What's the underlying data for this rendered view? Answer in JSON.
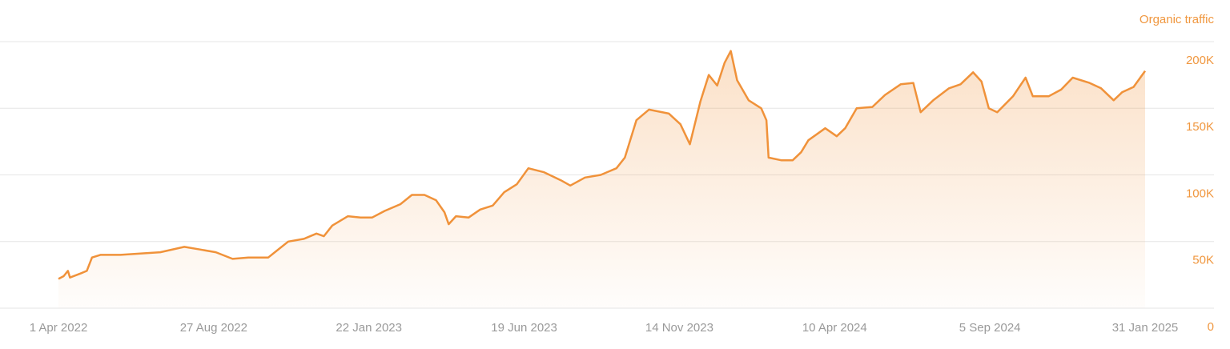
{
  "chart_data": {
    "type": "line",
    "x": [
      "1 Apr 2022",
      "6 Apr 2022",
      "10 Apr 2022",
      "12 Apr 2022",
      "22 Apr 2022",
      "28 Apr 2022",
      "3 May 2022",
      "11 May 2022",
      "30 May 2022",
      "18 Jun 2022",
      "7 Jul 2022",
      "30 Jul 2022",
      "14 Aug 2022",
      "29 Aug 2022",
      "14 Sep 2022",
      "29 Sep 2022",
      "18 Oct 2022",
      "26 Oct 2022",
      "6 Nov 2022",
      "21 Nov 2022",
      "3 Dec 2022",
      "10 Dec 2022",
      "18 Dec 2022",
      "2 Jan 2023",
      "14 Jan 2023",
      "25 Jan 2023",
      "6 Feb 2023",
      "21 Feb 2023",
      "4 Mar 2023",
      "16 Mar 2023",
      "27 Mar 2023",
      "4 Apr 2023",
      "8 Apr 2023",
      "15 Apr 2023",
      "27 Apr 2023",
      "8 May 2023",
      "20 May 2023",
      "31 May 2023",
      "12 Jun 2023",
      "23 Jun 2023",
      "8 Jul 2023",
      "24 Jul 2023",
      "2 Aug 2023",
      "16 Aug 2023",
      "31 Aug 2023",
      "15 Sep 2023",
      "23 Sep 2023",
      "4 Oct 2023",
      "16 Oct 2023",
      "4 Nov 2023",
      "15 Nov 2023",
      "24 Nov 2023",
      "4 Dec 2023",
      "12 Dec 2023",
      "20 Dec 2023",
      "27 Dec 2023",
      "2 Jan 2024",
      "8 Jan 2024",
      "19 Jan 2024",
      "31 Jan 2024",
      "5 Feb 2024",
      "7 Feb 2024",
      "19 Feb 2024",
      "1 Mar 2024",
      "9 Mar 2024",
      "16 Mar 2024",
      "1 Apr 2024",
      "12 Apr 2024",
      "20 Apr 2024",
      "1 May 2024",
      "16 May 2024",
      "28 May 2024",
      "12 Jun 2024",
      "24 Jun 2024",
      "1 Jul 2024",
      "13 Jul 2024",
      "28 Jul 2024",
      "8 Aug 2024",
      "20 Aug 2024",
      "28 Aug 2024",
      "4 Sep 2024",
      "12 Sep 2024",
      "27 Sep 2024",
      "9 Oct 2024",
      "16 Oct 2024",
      "31 Oct 2024",
      "12 Nov 2024",
      "23 Nov 2024",
      "9 Dec 2024",
      "20 Dec 2024",
      "1 Jan 2025",
      "9 Jan 2025",
      "20 Jan 2025",
      "31 Jan 2025"
    ],
    "series": [
      {
        "name": "Organic traffic",
        "color": "#f0923a",
        "values": [
          22000,
          24000,
          28000,
          23000,
          26000,
          28000,
          38000,
          40000,
          40000,
          41000,
          42000,
          46000,
          44000,
          42000,
          37000,
          38000,
          38000,
          43000,
          50000,
          52000,
          56000,
          54000,
          62000,
          69000,
          68000,
          68000,
          73000,
          78000,
          85000,
          85000,
          81000,
          72000,
          63000,
          69000,
          68000,
          74000,
          77000,
          87000,
          93000,
          105000,
          102000,
          96000,
          92000,
          98000,
          100000,
          105000,
          113000,
          141000,
          149000,
          146000,
          138000,
          123000,
          155000,
          175000,
          167000,
          184000,
          193000,
          171000,
          156000,
          150000,
          141000,
          113000,
          111000,
          111000,
          117000,
          126000,
          135000,
          129000,
          135000,
          150000,
          151000,
          160000,
          168000,
          169000,
          147000,
          156000,
          165000,
          168000,
          177000,
          170000,
          150000,
          147000,
          159000,
          173000,
          159000,
          159000,
          164000,
          173000,
          169000,
          165000,
          156000,
          162000,
          166000,
          178000
        ]
      }
    ],
    "xlim": [
      "1 Apr 2022",
      "31 Jan 2025"
    ],
    "xticks": [
      "1 Apr 2022",
      "27 Aug 2022",
      "22 Jan 2023",
      "19 Jun 2023",
      "14 Nov 2023",
      "10 Apr 2024",
      "5 Sep 2024",
      "31 Jan 2025"
    ],
    "ylim": [
      0,
      200000
    ],
    "yticks": [
      0,
      {
        "value": 50000,
        "label": "50K"
      },
      {
        "value": 100000,
        "label": "100K"
      },
      {
        "value": 150000,
        "label": "150K"
      },
      {
        "value": 200000,
        "label": "200K"
      }
    ],
    "grid": true
  }
}
